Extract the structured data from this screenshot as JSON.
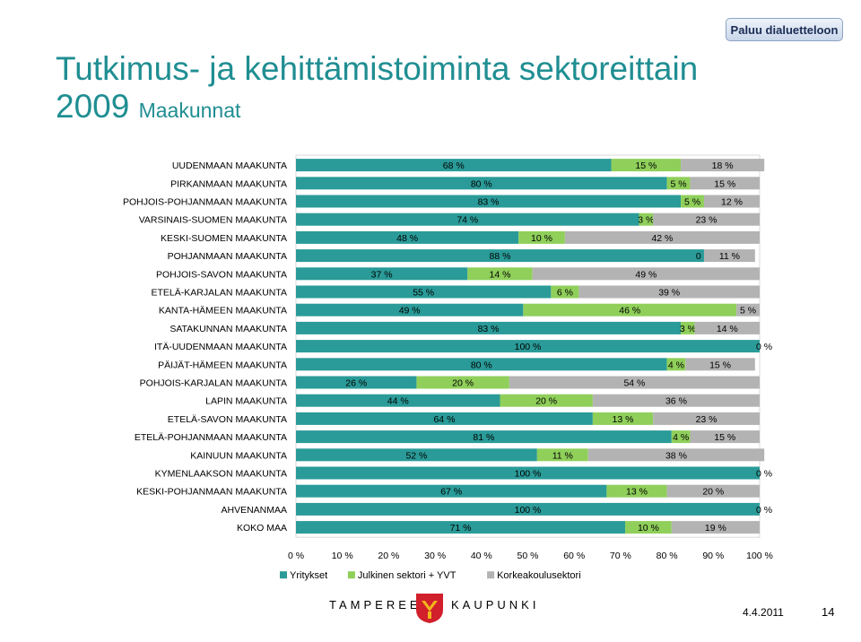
{
  "nav": {
    "back_label": "Paluu dialuetteloon"
  },
  "title": {
    "main": "Tutkimus- ja kehittämistoiminta sektoreittain",
    "year": "2009",
    "sub": "Maakunnat"
  },
  "chart_data": {
    "type": "bar",
    "orientation": "horizontal",
    "stacked": "percent",
    "categories": [
      "UUDENMAAN MAAKUNTA",
      "PIRKANMAAN MAAKUNTA",
      "POHJOIS-POHJANMAAN MAAKUNTA",
      "VARSINAIS-SUOMEN MAAKUNTA",
      "KESKI-SUOMEN MAAKUNTA",
      "POHJANMAAN MAAKUNTA",
      "POHJOIS-SAVON MAAKUNTA",
      "ETELÄ-KARJALAN MAAKUNTA",
      "KANTA-HÄMEEN MAAKUNTA",
      "SATAKUNNAN MAAKUNTA",
      "ITÄ-UUDENMAAN MAAKUNTA",
      "PÄIJÄT-HÄMEEN MAAKUNTA",
      "POHJOIS-KARJALAN MAAKUNTA",
      "LAPIN MAAKUNTA",
      "ETELÄ-SAVON MAAKUNTA",
      "ETELÄ-POHJANMAAN MAAKUNTA",
      "KAINUUN MAAKUNTA",
      "KYMENLAAKSON MAAKUNTA",
      "KESKI-POHJANMAAN MAAKUNTA",
      "AHVENANMAA",
      "KOKO MAA"
    ],
    "series": [
      {
        "name": "Yritykset",
        "color": "#2a9b98",
        "values": [
          68,
          80,
          83,
          74,
          48,
          88,
          37,
          55,
          49,
          83,
          100,
          80,
          26,
          44,
          64,
          81,
          52,
          100,
          67,
          100,
          71
        ],
        "labels": [
          "68 %",
          "80 %",
          "83 %",
          "74 %",
          "48 %",
          "88 %",
          "37 %",
          "55 %",
          "49 %",
          "83 %",
          "100 %",
          "80 %",
          "26 %",
          "44 %",
          "64 %",
          "81 %",
          "52 %",
          "100 %",
          "67 %",
          "100 %",
          "71 %"
        ]
      },
      {
        "name": "Julkinen sektori + YVT",
        "color": "#8fcf5a",
        "values": [
          15,
          5,
          5,
          3,
          10,
          0,
          14,
          6,
          46,
          3,
          0,
          4,
          20,
          20,
          13,
          4,
          11,
          0,
          13,
          0,
          10
        ],
        "labels": [
          "15 %",
          "5 %",
          "5 %",
          "3 %",
          "10 %",
          "0 %",
          "14 %",
          "6 %",
          "46 %",
          "3 %",
          "",
          "4 %",
          "20 %",
          "20 %",
          "13 %",
          "4 %",
          "11 %",
          "",
          "13 %",
          "",
          "10 %"
        ]
      },
      {
        "name": "Korkeakoulusektori",
        "color": "#b3b3b3",
        "values": [
          18,
          15,
          12,
          23,
          42,
          11,
          49,
          39,
          5,
          14,
          0,
          15,
          54,
          36,
          23,
          15,
          38,
          0,
          20,
          0,
          19
        ],
        "labels": [
          "18 %",
          "15 %",
          "12 %",
          "23 %",
          "42 %",
          "11 %",
          "49 %",
          "39 %",
          "5 %",
          "14 %",
          "0 %",
          "15 %",
          "54 %",
          "36 %",
          "23 %",
          "15 %",
          "38 %",
          "0 %",
          "20 %",
          "0 %",
          "19 %"
        ]
      }
    ],
    "x_ticks": [
      "0 %",
      "10 %",
      "20 %",
      "30 %",
      "40 %",
      "50 %",
      "60 %",
      "70 %",
      "80 %",
      "90 %",
      "100 %"
    ],
    "xlim": [
      0,
      100
    ],
    "legend_position": "bottom-left",
    "grid": false
  },
  "footer": {
    "org_left": "TAMPEREEN",
    "org_right": "KAUPUNKI",
    "date": "4.4.2011",
    "page": "14"
  },
  "colors": {
    "title": "#1f8e92",
    "crest_red": "#d11f2b",
    "crest_gold": "#f2b51c"
  }
}
